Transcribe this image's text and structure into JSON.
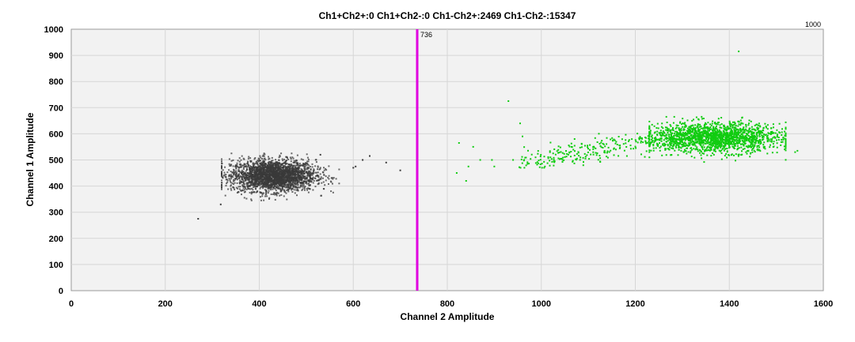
{
  "chart_data": {
    "type": "scatter",
    "title": "Ch1+Ch2+:0  Ch1+Ch2-:0  Ch1-Ch2+:2469  Ch1-Ch2-:15347",
    "xlabel": "Channel 2 Amplitude",
    "ylabel": "Channel 1 Amplitude",
    "xlim": [
      0,
      1600
    ],
    "ylim": [
      0,
      1000
    ],
    "xticks": [
      0,
      200,
      400,
      600,
      800,
      1000,
      1200,
      1400,
      1600
    ],
    "yticks": [
      0,
      100,
      200,
      300,
      400,
      500,
      600,
      700,
      800,
      900,
      1000
    ],
    "grid": true,
    "threshold": {
      "x": 736,
      "label": "736",
      "color": "#e000e0"
    },
    "corner_label": "1000",
    "series": [
      {
        "color": "#3a3a3a",
        "count": 15347,
        "cluster": {
          "center": [
            430,
            440
          ],
          "spread": [
            45,
            30
          ],
          "xrange": [
            320,
            570
          ],
          "yrange": [
            345,
            525
          ]
        },
        "outliers": [
          [
            270,
            275
          ],
          [
            318,
            330
          ],
          [
            530,
            520
          ],
          [
            600,
            470
          ],
          [
            605,
            475
          ],
          [
            620,
            500
          ],
          [
            635,
            515
          ],
          [
            670,
            490
          ],
          [
            700,
            460
          ]
        ]
      },
      {
        "color": "#11cc11",
        "count": 2469,
        "cluster": {
          "center": [
            1370,
            585
          ],
          "spread": [
            70,
            28
          ],
          "xrange": [
            1230,
            1520
          ],
          "yrange": [
            485,
            665
          ]
        },
        "trail": {
          "xrange": [
            950,
            1280
          ],
          "yrange": [
            470,
            640
          ]
        },
        "outliers": [
          [
            820,
            450
          ],
          [
            825,
            565
          ],
          [
            840,
            420
          ],
          [
            845,
            475
          ],
          [
            855,
            550
          ],
          [
            870,
            500
          ],
          [
            895,
            500
          ],
          [
            900,
            475
          ],
          [
            930,
            725
          ],
          [
            940,
            500
          ],
          [
            955,
            640
          ],
          [
            960,
            590
          ],
          [
            1420,
            915
          ],
          [
            1545,
            535
          ],
          [
            1540,
            530
          ]
        ]
      }
    ]
  }
}
